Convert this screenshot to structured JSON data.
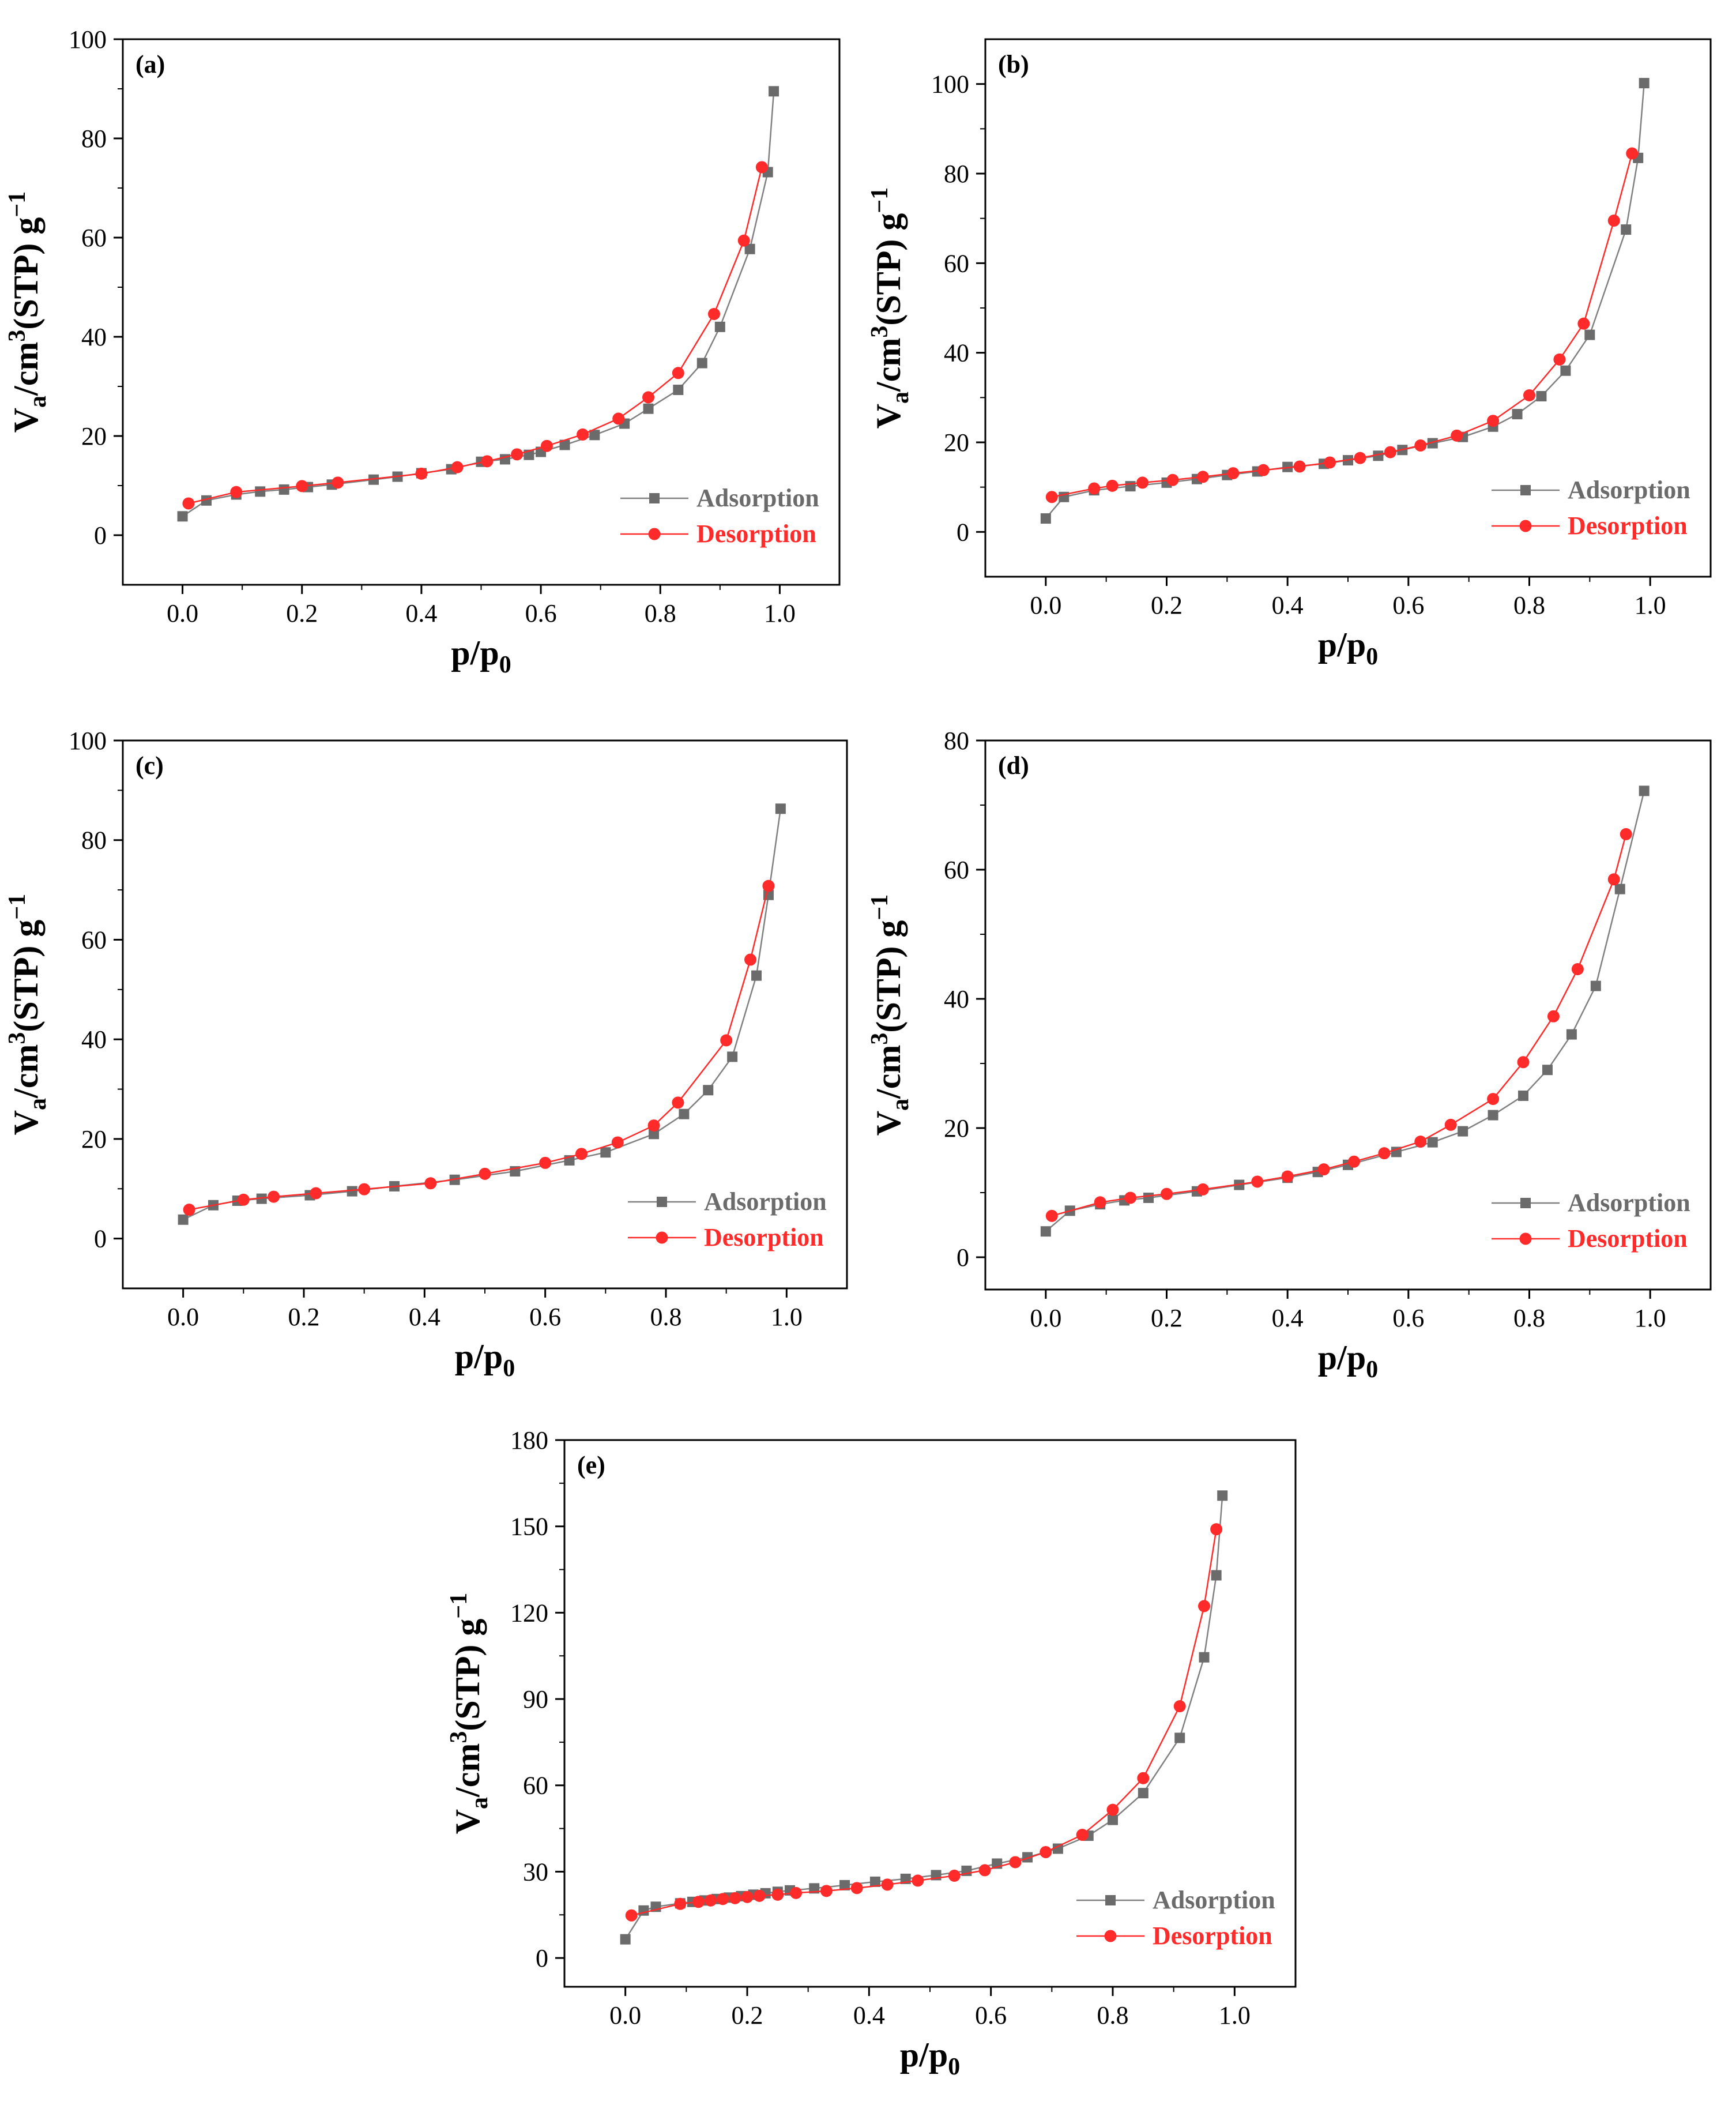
{
  "chart_data": [
    {
      "type": "line",
      "panel_label": "(a)",
      "xlabel": "p/p",
      "xlabel_sub": "0",
      "ylabel": "V",
      "ylabel_sub": "a",
      "ylabel_main": "/cm",
      "ylabel_sup": "3",
      "ylabel_rest": "(STP) g",
      "ylabel_sup2": "−1",
      "xlim": [
        -0.1,
        1.1
      ],
      "ylim": [
        -10,
        100
      ],
      "xticks": [
        0.0,
        0.2,
        0.4,
        0.6,
        0.8,
        1.0
      ],
      "xtick_labels": [
        "0.0",
        "0.2",
        "0.4",
        "0.6",
        "0.8",
        "1.0"
      ],
      "yticks": [
        0,
        20,
        40,
        60,
        80,
        100
      ],
      "ytick_labels": [
        "0",
        "20",
        "40",
        "60",
        "80",
        "100"
      ],
      "legend_position": "lower-right",
      "series": [
        {
          "name": "Adsorption",
          "color": "#6b6b6b",
          "label_color": "#6b6b6b",
          "line_color": "#808080",
          "marker": "square",
          "x": [
            0.0,
            0.04,
            0.09,
            0.13,
            0.17,
            0.21,
            0.25,
            0.32,
            0.36,
            0.4,
            0.45,
            0.5,
            0.54,
            0.58,
            0.6,
            0.64,
            0.69,
            0.74,
            0.78,
            0.83,
            0.87,
            0.9,
            0.95,
            0.98,
            0.99
          ],
          "y": [
            3.8,
            7.0,
            8.2,
            8.8,
            9.2,
            9.7,
            10.2,
            11.2,
            11.8,
            12.5,
            13.3,
            14.8,
            15.3,
            16.2,
            16.8,
            18.2,
            20.2,
            22.5,
            25.5,
            29.3,
            34.7,
            42.0,
            57.7,
            73.2,
            89.5
          ]
        },
        {
          "name": "Desorption",
          "color": "#ff2a2a",
          "label_color": "#ff2a2a",
          "line_color": "#ff2a2a",
          "marker": "circle",
          "x": [
            0.01,
            0.09,
            0.2,
            0.26,
            0.4,
            0.46,
            0.51,
            0.56,
            0.61,
            0.67,
            0.73,
            0.78,
            0.83,
            0.89,
            0.94,
            0.97
          ],
          "y": [
            6.4,
            8.7,
            9.9,
            10.6,
            12.4,
            13.7,
            14.9,
            16.3,
            18.0,
            20.3,
            23.5,
            27.8,
            32.7,
            44.6,
            59.4,
            74.2
          ]
        }
      ]
    },
    {
      "type": "line",
      "panel_label": "(b)",
      "xlabel": "p/p",
      "xlabel_sub": "0",
      "ylabel": "V",
      "ylabel_sub": "a",
      "ylabel_main": "/cm",
      "ylabel_sup": "3",
      "ylabel_rest": "(STP) g",
      "ylabel_sup2": "−1",
      "xlim": [
        -0.1,
        1.1
      ],
      "ylim": [
        -10,
        110
      ],
      "xticks": [
        0.0,
        0.2,
        0.4,
        0.6,
        0.8,
        1.0
      ],
      "xtick_labels": [
        "0.0",
        "0.2",
        "0.4",
        "0.6",
        "0.8",
        "1.0"
      ],
      "yticks": [
        0,
        20,
        40,
        60,
        80,
        100
      ],
      "ytick_labels": [
        "0",
        "20",
        "40",
        "60",
        "80",
        "100"
      ],
      "legend_position": "lower-right",
      "series": [
        {
          "name": "Adsorption",
          "color": "#6b6b6b",
          "label_color": "#6b6b6b",
          "line_color": "#808080",
          "marker": "square",
          "x": [
            0.0,
            0.03,
            0.08,
            0.14,
            0.2,
            0.25,
            0.3,
            0.35,
            0.4,
            0.46,
            0.5,
            0.55,
            0.59,
            0.64,
            0.69,
            0.74,
            0.78,
            0.82,
            0.86,
            0.9,
            0.96,
            0.98,
            0.99
          ],
          "y": [
            3.0,
            7.8,
            9.3,
            10.2,
            11.0,
            11.8,
            12.7,
            13.5,
            14.5,
            15.2,
            16.0,
            17.0,
            18.3,
            19.8,
            21.2,
            23.5,
            26.3,
            30.3,
            36.0,
            44.0,
            67.5,
            83.5,
            100.2
          ]
        },
        {
          "name": "Desorption",
          "color": "#ff2a2a",
          "label_color": "#ff2a2a",
          "line_color": "#ff2a2a",
          "marker": "circle",
          "x": [
            0.01,
            0.08,
            0.11,
            0.16,
            0.21,
            0.26,
            0.31,
            0.36,
            0.42,
            0.47,
            0.52,
            0.57,
            0.62,
            0.68,
            0.74,
            0.8,
            0.85,
            0.89,
            0.94,
            0.97
          ],
          "y": [
            7.8,
            9.7,
            10.3,
            11.0,
            11.6,
            12.3,
            13.1,
            13.8,
            14.6,
            15.5,
            16.5,
            17.8,
            19.3,
            21.5,
            24.8,
            30.5,
            38.5,
            46.5,
            69.5,
            84.5
          ]
        }
      ]
    },
    {
      "type": "line",
      "panel_label": "(c)",
      "xlabel": "p/p",
      "xlabel_sub": "0",
      "ylabel": "V",
      "ylabel_sub": "a",
      "ylabel_main": "/cm",
      "ylabel_sup": "3",
      "ylabel_rest": "(STP) g",
      "ylabel_sup2": "−1",
      "xlim": [
        -0.1,
        1.1
      ],
      "ylim": [
        -10,
        100
      ],
      "xticks": [
        0.0,
        0.2,
        0.4,
        0.6,
        0.8,
        1.0
      ],
      "xtick_labels": [
        "0.0",
        "0.2",
        "0.4",
        "0.6",
        "0.8",
        "1.0"
      ],
      "yticks": [
        0,
        20,
        40,
        60,
        80,
        100
      ],
      "ytick_labels": [
        "0",
        "20",
        "40",
        "60",
        "80",
        "100"
      ],
      "legend_position": "lower-right",
      "series": [
        {
          "name": "Adsorption",
          "color": "#6b6b6b",
          "label_color": "#6b6b6b",
          "line_color": "#808080",
          "marker": "square",
          "x": [
            0.0,
            0.05,
            0.09,
            0.13,
            0.21,
            0.28,
            0.35,
            0.45,
            0.55,
            0.64,
            0.7,
            0.78,
            0.83,
            0.87,
            0.91,
            0.95,
            0.97,
            0.99
          ],
          "y": [
            3.8,
            6.7,
            7.6,
            8.0,
            8.7,
            9.5,
            10.5,
            11.8,
            13.5,
            15.7,
            17.3,
            21.0,
            25.0,
            29.8,
            36.5,
            52.8,
            69.0,
            86.3
          ]
        },
        {
          "name": "Desorption",
          "color": "#ff2a2a",
          "label_color": "#ff2a2a",
          "line_color": "#ff2a2a",
          "marker": "circle",
          "x": [
            0.01,
            0.1,
            0.15,
            0.22,
            0.3,
            0.41,
            0.5,
            0.6,
            0.66,
            0.72,
            0.78,
            0.82,
            0.9,
            0.94,
            0.97
          ],
          "y": [
            5.8,
            7.8,
            8.4,
            9.1,
            9.9,
            11.1,
            13.0,
            15.2,
            17.0,
            19.3,
            22.7,
            27.3,
            39.8,
            56.0,
            70.8
          ]
        }
      ]
    },
    {
      "type": "line",
      "panel_label": "(d)",
      "xlabel": "p/p",
      "xlabel_sub": "0",
      "ylabel": "V",
      "ylabel_sub": "a",
      "ylabel_main": "/cm",
      "ylabel_sup": "3",
      "ylabel_rest": "(STP) g",
      "ylabel_sup2": "−1",
      "xlim": [
        -0.1,
        1.1
      ],
      "ylim": [
        -5,
        80
      ],
      "xticks": [
        0.0,
        0.2,
        0.4,
        0.6,
        0.8,
        1.0
      ],
      "xtick_labels": [
        "0.0",
        "0.2",
        "0.4",
        "0.6",
        "0.8",
        "1.0"
      ],
      "yticks": [
        0,
        20,
        40,
        60,
        80
      ],
      "ytick_labels": [
        "0",
        "20",
        "40",
        "60",
        "80"
      ],
      "legend_position": "lower-right",
      "series": [
        {
          "name": "Adsorption",
          "color": "#6b6b6b",
          "label_color": "#6b6b6b",
          "line_color": "#808080",
          "marker": "square",
          "x": [
            0.0,
            0.04,
            0.09,
            0.13,
            0.17,
            0.25,
            0.32,
            0.4,
            0.45,
            0.5,
            0.58,
            0.64,
            0.69,
            0.74,
            0.79,
            0.83,
            0.87,
            0.91,
            0.95,
            0.99
          ],
          "y": [
            4.0,
            7.2,
            8.2,
            8.8,
            9.2,
            10.2,
            11.2,
            12.3,
            13.2,
            14.3,
            16.3,
            17.8,
            19.5,
            22.0,
            25.0,
            29.0,
            34.5,
            42.0,
            57.0,
            72.2
          ]
        },
        {
          "name": "Desorption",
          "color": "#ff2a2a",
          "label_color": "#ff2a2a",
          "line_color": "#ff2a2a",
          "marker": "circle",
          "x": [
            0.01,
            0.09,
            0.14,
            0.2,
            0.26,
            0.35,
            0.4,
            0.46,
            0.51,
            0.56,
            0.62,
            0.67,
            0.74,
            0.79,
            0.84,
            0.88,
            0.94,
            0.96
          ],
          "y": [
            6.4,
            8.5,
            9.2,
            9.8,
            10.5,
            11.7,
            12.5,
            13.6,
            14.8,
            16.1,
            17.9,
            20.5,
            24.5,
            30.2,
            37.3,
            44.6,
            58.5,
            65.5
          ]
        }
      ]
    },
    {
      "type": "line",
      "panel_label": "(e)",
      "xlabel": "p/p",
      "xlabel_sub": "0",
      "ylabel": "V",
      "ylabel_sub": "a",
      "ylabel_main": "/cm",
      "ylabel_sup": "3",
      "ylabel_rest": "(STP) g",
      "ylabel_sup2": "−1",
      "xlim": [
        -0.1,
        1.1
      ],
      "ylim": [
        -10,
        180
      ],
      "xticks": [
        0.0,
        0.2,
        0.4,
        0.6,
        0.8,
        1.0
      ],
      "xtick_labels": [
        "0.0",
        "0.2",
        "0.4",
        "0.6",
        "0.8",
        "1.0"
      ],
      "yticks": [
        0,
        30,
        60,
        90,
        120,
        150,
        180
      ],
      "ytick_labels": [
        "0",
        "30",
        "60",
        "90",
        "120",
        "150",
        "180"
      ],
      "legend_position": "lower-right",
      "series": [
        {
          "name": "Adsorption",
          "color": "#6b6b6b",
          "label_color": "#6b6b6b",
          "line_color": "#808080",
          "marker": "square",
          "x": [
            0.0,
            0.03,
            0.05,
            0.09,
            0.11,
            0.13,
            0.15,
            0.17,
            0.19,
            0.21,
            0.23,
            0.25,
            0.27,
            0.31,
            0.36,
            0.41,
            0.46,
            0.51,
            0.56,
            0.61,
            0.66,
            0.71,
            0.76,
            0.8,
            0.85,
            0.91,
            0.95,
            0.97,
            0.98
          ],
          "y": [
            6.5,
            16.5,
            17.8,
            19.0,
            19.5,
            20.0,
            20.5,
            21.0,
            21.5,
            22.0,
            22.5,
            23.0,
            23.5,
            24.2,
            25.3,
            26.5,
            27.5,
            28.8,
            30.3,
            32.8,
            35.0,
            38.0,
            42.5,
            48.0,
            57.3,
            76.5,
            104.5,
            133.0,
            160.7
          ]
        },
        {
          "name": "Desorption",
          "color": "#ff2a2a",
          "label_color": "#ff2a2a",
          "line_color": "#ff2a2a",
          "marker": "circle",
          "x": [
            0.01,
            0.09,
            0.12,
            0.14,
            0.16,
            0.18,
            0.2,
            0.22,
            0.25,
            0.28,
            0.33,
            0.38,
            0.43,
            0.48,
            0.54,
            0.59,
            0.64,
            0.69,
            0.75,
            0.8,
            0.85,
            0.91,
            0.95,
            0.97
          ],
          "y": [
            14.8,
            18.8,
            19.5,
            20.0,
            20.5,
            20.8,
            21.2,
            21.6,
            22.0,
            22.6,
            23.3,
            24.3,
            25.5,
            26.9,
            28.6,
            30.5,
            33.3,
            36.8,
            42.8,
            51.5,
            62.5,
            87.5,
            122.3,
            149.0
          ]
        }
      ]
    }
  ]
}
